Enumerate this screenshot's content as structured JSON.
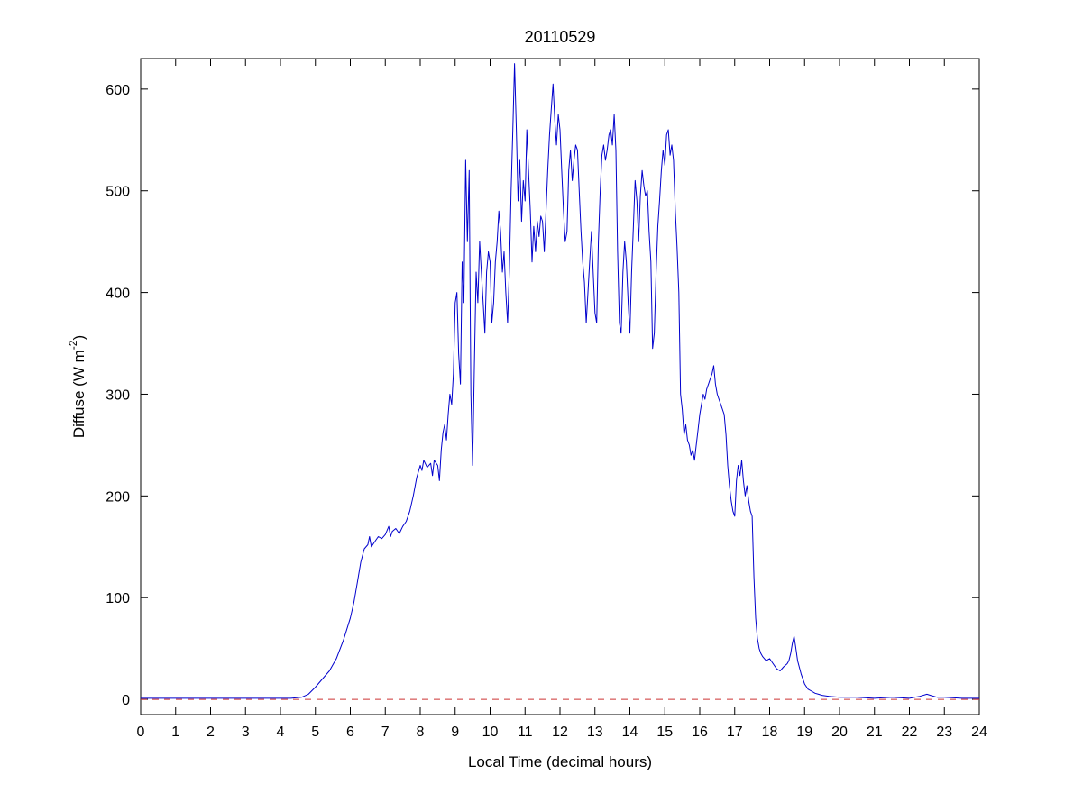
{
  "chart_data": {
    "type": "line",
    "title": "20110529",
    "xlabel": "Local Time (decimal hours)",
    "ylabel": "Diffuse (W m-2)",
    "ylabel_parts": {
      "main": "Diffuse (W m",
      "sup": "-2",
      "close": ")"
    },
    "xlim": [
      0,
      24
    ],
    "ylim": [
      -15,
      630
    ],
    "xticks": [
      0,
      1,
      2,
      3,
      4,
      5,
      6,
      7,
      8,
      9,
      10,
      11,
      12,
      13,
      14,
      15,
      16,
      17,
      18,
      19,
      20,
      21,
      22,
      23,
      24
    ],
    "yticks": [
      0,
      100,
      200,
      300,
      400,
      500,
      600
    ],
    "grid": false,
    "legend": null,
    "colors": {
      "line": "#0000cd",
      "zero_line": "#cc3333",
      "axis": "#000000"
    },
    "zero_line": {
      "y": 0,
      "style": "dashed",
      "color": "#cc3333"
    },
    "series": [
      {
        "name": "diffuse",
        "color": "#0000cd",
        "points": [
          [
            0,
            1
          ],
          [
            0.5,
            1
          ],
          [
            1,
            1
          ],
          [
            1.5,
            1
          ],
          [
            2,
            1
          ],
          [
            2.5,
            1
          ],
          [
            3,
            1
          ],
          [
            3.5,
            1
          ],
          [
            4,
            1
          ],
          [
            4.3,
            1
          ],
          [
            4.6,
            2
          ],
          [
            4.8,
            5
          ],
          [
            5,
            12
          ],
          [
            5.2,
            20
          ],
          [
            5.4,
            28
          ],
          [
            5.6,
            40
          ],
          [
            5.8,
            58
          ],
          [
            6,
            80
          ],
          [
            6.1,
            95
          ],
          [
            6.2,
            115
          ],
          [
            6.3,
            135
          ],
          [
            6.4,
            148
          ],
          [
            6.5,
            152
          ],
          [
            6.55,
            160
          ],
          [
            6.6,
            150
          ],
          [
            6.7,
            155
          ],
          [
            6.8,
            160
          ],
          [
            6.9,
            158
          ],
          [
            7,
            162
          ],
          [
            7.1,
            170
          ],
          [
            7.15,
            160
          ],
          [
            7.2,
            165
          ],
          [
            7.3,
            168
          ],
          [
            7.4,
            163
          ],
          [
            7.5,
            170
          ],
          [
            7.6,
            175
          ],
          [
            7.7,
            185
          ],
          [
            7.8,
            200
          ],
          [
            7.9,
            218
          ],
          [
            8,
            230
          ],
          [
            8.05,
            225
          ],
          [
            8.1,
            235
          ],
          [
            8.2,
            228
          ],
          [
            8.3,
            232
          ],
          [
            8.35,
            220
          ],
          [
            8.4,
            235
          ],
          [
            8.5,
            230
          ],
          [
            8.55,
            215
          ],
          [
            8.6,
            245
          ],
          [
            8.65,
            262
          ],
          [
            8.7,
            270
          ],
          [
            8.75,
            255
          ],
          [
            8.8,
            280
          ],
          [
            8.85,
            300
          ],
          [
            8.9,
            290
          ],
          [
            8.95,
            320
          ],
          [
            9,
            390
          ],
          [
            9.05,
            400
          ],
          [
            9.1,
            340
          ],
          [
            9.15,
            310
          ],
          [
            9.2,
            430
          ],
          [
            9.25,
            390
          ],
          [
            9.3,
            530
          ],
          [
            9.35,
            450
          ],
          [
            9.4,
            520
          ],
          [
            9.45,
            300
          ],
          [
            9.5,
            230
          ],
          [
            9.55,
            330
          ],
          [
            9.6,
            420
          ],
          [
            9.65,
            390
          ],
          [
            9.7,
            450
          ],
          [
            9.75,
            420
          ],
          [
            9.8,
            390
          ],
          [
            9.85,
            360
          ],
          [
            9.9,
            420
          ],
          [
            9.95,
            440
          ],
          [
            10,
            430
          ],
          [
            10.05,
            370
          ],
          [
            10.1,
            390
          ],
          [
            10.15,
            430
          ],
          [
            10.2,
            450
          ],
          [
            10.25,
            480
          ],
          [
            10.3,
            460
          ],
          [
            10.35,
            420
          ],
          [
            10.4,
            440
          ],
          [
            10.45,
            400
          ],
          [
            10.5,
            370
          ],
          [
            10.55,
            420
          ],
          [
            10.6,
            500
          ],
          [
            10.65,
            560
          ],
          [
            10.7,
            625
          ],
          [
            10.75,
            560
          ],
          [
            10.8,
            490
          ],
          [
            10.85,
            530
          ],
          [
            10.9,
            470
          ],
          [
            10.95,
            510
          ],
          [
            11,
            490
          ],
          [
            11.05,
            560
          ],
          [
            11.1,
            520
          ],
          [
            11.15,
            480
          ],
          [
            11.2,
            430
          ],
          [
            11.25,
            465
          ],
          [
            11.3,
            440
          ],
          [
            11.35,
            470
          ],
          [
            11.4,
            455
          ],
          [
            11.45,
            475
          ],
          [
            11.5,
            470
          ],
          [
            11.55,
            440
          ],
          [
            11.6,
            480
          ],
          [
            11.65,
            520
          ],
          [
            11.7,
            555
          ],
          [
            11.75,
            580
          ],
          [
            11.8,
            605
          ],
          [
            11.85,
            570
          ],
          [
            11.9,
            545
          ],
          [
            11.95,
            575
          ],
          [
            12,
            560
          ],
          [
            12.05,
            520
          ],
          [
            12.1,
            480
          ],
          [
            12.15,
            450
          ],
          [
            12.2,
            460
          ],
          [
            12.25,
            520
          ],
          [
            12.3,
            540
          ],
          [
            12.35,
            510
          ],
          [
            12.4,
            530
          ],
          [
            12.45,
            545
          ],
          [
            12.5,
            540
          ],
          [
            12.55,
            500
          ],
          [
            12.6,
            460
          ],
          [
            12.65,
            430
          ],
          [
            12.7,
            410
          ],
          [
            12.75,
            370
          ],
          [
            12.8,
            400
          ],
          [
            12.85,
            430
          ],
          [
            12.9,
            460
          ],
          [
            12.95,
            420
          ],
          [
            13,
            380
          ],
          [
            13.05,
            370
          ],
          [
            13.1,
            450
          ],
          [
            13.15,
            500
          ],
          [
            13.2,
            535
          ],
          [
            13.25,
            545
          ],
          [
            13.3,
            530
          ],
          [
            13.35,
            540
          ],
          [
            13.4,
            555
          ],
          [
            13.45,
            560
          ],
          [
            13.5,
            545
          ],
          [
            13.55,
            575
          ],
          [
            13.6,
            540
          ],
          [
            13.65,
            440
          ],
          [
            13.7,
            370
          ],
          [
            13.75,
            360
          ],
          [
            13.8,
            420
          ],
          [
            13.85,
            450
          ],
          [
            13.9,
            430
          ],
          [
            13.95,
            390
          ],
          [
            14,
            360
          ],
          [
            14.05,
            420
          ],
          [
            14.1,
            465
          ],
          [
            14.15,
            510
          ],
          [
            14.2,
            490
          ],
          [
            14.25,
            450
          ],
          [
            14.3,
            495
          ],
          [
            14.35,
            520
          ],
          [
            14.4,
            505
          ],
          [
            14.45,
            495
          ],
          [
            14.5,
            500
          ],
          [
            14.55,
            460
          ],
          [
            14.6,
            430
          ],
          [
            14.65,
            345
          ],
          [
            14.7,
            360
          ],
          [
            14.75,
            420
          ],
          [
            14.8,
            465
          ],
          [
            14.85,
            490
          ],
          [
            14.9,
            520
          ],
          [
            14.95,
            540
          ],
          [
            15,
            525
          ],
          [
            15.05,
            555
          ],
          [
            15.1,
            560
          ],
          [
            15.15,
            535
          ],
          [
            15.2,
            545
          ],
          [
            15.25,
            530
          ],
          [
            15.3,
            480
          ],
          [
            15.35,
            445
          ],
          [
            15.4,
            400
          ],
          [
            15.45,
            300
          ],
          [
            15.5,
            285
          ],
          [
            15.55,
            260
          ],
          [
            15.6,
            270
          ],
          [
            15.65,
            255
          ],
          [
            15.7,
            250
          ],
          [
            15.75,
            240
          ],
          [
            15.8,
            245
          ],
          [
            15.85,
            235
          ],
          [
            15.9,
            250
          ],
          [
            15.95,
            265
          ],
          [
            16,
            280
          ],
          [
            16.05,
            290
          ],
          [
            16.1,
            300
          ],
          [
            16.15,
            295
          ],
          [
            16.2,
            305
          ],
          [
            16.25,
            310
          ],
          [
            16.3,
            315
          ],
          [
            16.35,
            320
          ],
          [
            16.4,
            328
          ],
          [
            16.45,
            310
          ],
          [
            16.5,
            300
          ],
          [
            16.55,
            295
          ],
          [
            16.6,
            290
          ],
          [
            16.65,
            285
          ],
          [
            16.7,
            280
          ],
          [
            16.75,
            260
          ],
          [
            16.8,
            230
          ],
          [
            16.85,
            210
          ],
          [
            16.9,
            195
          ],
          [
            16.95,
            185
          ],
          [
            17,
            180
          ],
          [
            17.05,
            215
          ],
          [
            17.1,
            230
          ],
          [
            17.15,
            220
          ],
          [
            17.2,
            235
          ],
          [
            17.25,
            215
          ],
          [
            17.3,
            200
          ],
          [
            17.35,
            210
          ],
          [
            17.4,
            195
          ],
          [
            17.45,
            185
          ],
          [
            17.5,
            180
          ],
          [
            17.55,
            120
          ],
          [
            17.6,
            80
          ],
          [
            17.65,
            60
          ],
          [
            17.7,
            50
          ],
          [
            17.75,
            45
          ],
          [
            17.8,
            42
          ],
          [
            17.9,
            38
          ],
          [
            18,
            40
          ],
          [
            18.1,
            35
          ],
          [
            18.2,
            30
          ],
          [
            18.3,
            28
          ],
          [
            18.4,
            32
          ],
          [
            18.5,
            35
          ],
          [
            18.55,
            38
          ],
          [
            18.6,
            45
          ],
          [
            18.65,
            55
          ],
          [
            18.7,
            62
          ],
          [
            18.75,
            50
          ],
          [
            18.8,
            38
          ],
          [
            18.9,
            25
          ],
          [
            19,
            15
          ],
          [
            19.1,
            10
          ],
          [
            19.2,
            8
          ],
          [
            19.3,
            6
          ],
          [
            19.4,
            5
          ],
          [
            19.5,
            4
          ],
          [
            19.7,
            3
          ],
          [
            20,
            2
          ],
          [
            20.5,
            2
          ],
          [
            21,
            1
          ],
          [
            21.5,
            2
          ],
          [
            22,
            1
          ],
          [
            22.3,
            3
          ],
          [
            22.5,
            5
          ],
          [
            22.6,
            4
          ],
          [
            22.8,
            2
          ],
          [
            23,
            2
          ],
          [
            23.5,
            1
          ],
          [
            24,
            1
          ]
        ]
      }
    ]
  }
}
